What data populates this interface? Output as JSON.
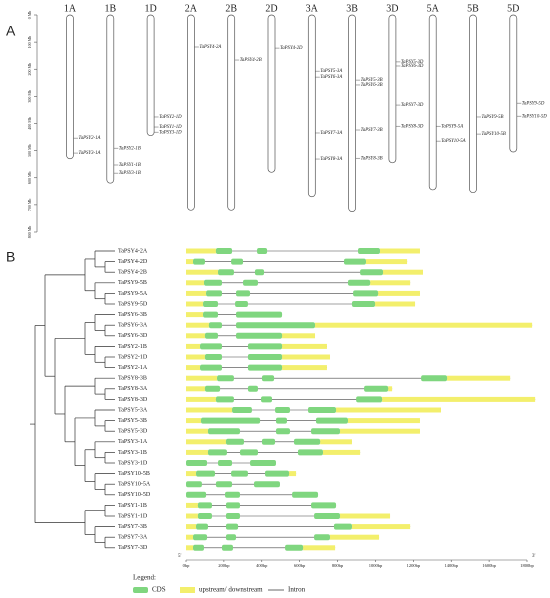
{
  "chart_data": [
    {
      "type": "ideogram",
      "label": "A",
      "ylim": [
        0,
        800
      ],
      "yticks": [
        {
          "value": 0,
          "label": "0 Mb"
        },
        {
          "value": 100,
          "label": "100 Mb"
        },
        {
          "value": 200,
          "label": "200 Mb"
        },
        {
          "value": 300,
          "label": "300 Mb"
        },
        {
          "value": 400,
          "label": "400 Mb"
        },
        {
          "value": 500,
          "label": "500 Mb"
        },
        {
          "value": 600,
          "label": "600 Mb"
        },
        {
          "value": 700,
          "label": "700 Mb"
        },
        {
          "value": 800,
          "label": "800 Mb"
        }
      ],
      "chromosomes": [
        {
          "name": "1A",
          "length": 530,
          "genes": [
            {
              "name": "TaPSY2-1A",
              "position": 454
            },
            {
              "name": "TaPSY3-1A",
              "position": 509
            }
          ]
        },
        {
          "name": "1B",
          "length": 620,
          "genes": [
            {
              "name": "TaPSY2-1B",
              "position": 491
            },
            {
              "name": "TaPSY1-1B",
              "position": 553
            },
            {
              "name": "TaPSY3-1B",
              "position": 583
            }
          ]
        },
        {
          "name": "1D",
          "length": 445,
          "genes": [
            {
              "name": "TaPSY2-1D",
              "position": 376
            },
            {
              "name": "TaPSY1-1D",
              "position": 413
            },
            {
              "name": "TaPSY3-1D",
              "position": 432
            }
          ]
        },
        {
          "name": "2A",
          "length": 720,
          "genes": [
            {
              "name": "TaPSY4-2A",
              "position": 118
            }
          ]
        },
        {
          "name": "2B",
          "length": 720,
          "genes": [
            {
              "name": "TaPSY4-2B",
              "position": 166
            }
          ]
        },
        {
          "name": "2D",
          "length": 580,
          "genes": [
            {
              "name": "TaPSY4-2D",
              "position": 122
            }
          ]
        },
        {
          "name": "3A",
          "length": 670,
          "genes": [
            {
              "name": "TaPSY5-3A",
              "position": 207
            },
            {
              "name": "TaPSY6-3A",
              "position": 229
            },
            {
              "name": "TaPSY7-3A",
              "position": 435
            },
            {
              "name": "TaPSY8-3A",
              "position": 531
            }
          ]
        },
        {
          "name": "3B",
          "length": 725,
          "genes": [
            {
              "name": "TaPSY5-3B",
              "position": 240
            },
            {
              "name": "TaPSY6-3B",
              "position": 258
            },
            {
              "name": "TaPSY7-3B",
              "position": 424
            },
            {
              "name": "TaPSY8-3B",
              "position": 528
            }
          ]
        },
        {
          "name": "3D",
          "length": 545,
          "genes": [
            {
              "name": "TaPSY5-3D",
              "position": 173
            },
            {
              "name": "TaPSY6-3D",
              "position": 188
            },
            {
              "name": "TaPSY7-3D",
              "position": 332
            },
            {
              "name": "TaPSY8-3D",
              "position": 410
            }
          ]
        },
        {
          "name": "5A",
          "length": 645,
          "genes": [
            {
              "name": "TaPSY9-5A",
              "position": 410
            },
            {
              "name": "TaPSY10-5A",
              "position": 465
            }
          ]
        },
        {
          "name": "5B",
          "length": 655,
          "genes": [
            {
              "name": "TaPSY9-5B",
              "position": 376
            },
            {
              "name": "TaPSY10-5B",
              "position": 439
            }
          ]
        },
        {
          "name": "5D",
          "length": 505,
          "genes": [
            {
              "name": "TaPSY9-5D",
              "position": 325
            },
            {
              "name": "TaPSY10-5D",
              "position": 373
            }
          ]
        }
      ]
    },
    {
      "type": "gene-structure",
      "label": "B",
      "xlim": [
        0,
        1800
      ],
      "xticks": [
        {
          "value": 0,
          "label": "0bp"
        },
        {
          "value": 200,
          "label": "200bp"
        },
        {
          "value": 400,
          "label": "400bp"
        },
        {
          "value": 600,
          "label": "600bp"
        },
        {
          "value": 800,
          "label": "800bp"
        },
        {
          "value": 1000,
          "label": "1000bp"
        },
        {
          "value": 1200,
          "label": "1200bp"
        },
        {
          "value": 1400,
          "label": "1400bp"
        },
        {
          "value": 1600,
          "label": "1600bp"
        },
        {
          "value": 1800,
          "label": "1800bp"
        }
      ],
      "five_prime": "5'",
      "three_prime": "3'",
      "legend": {
        "title": "Legend:",
        "cds": "CDS",
        "utr": "upstream/ downstream",
        "intron": "Intron"
      },
      "colors": {
        "cds": "#7fd67f",
        "utr": "#f3ef6c",
        "intron": "#444444"
      },
      "genes": [
        {
          "name": "TaPSY4-2A",
          "length": 1235,
          "utr": [
            [
              0,
              158
            ],
            [
              1024,
              1235
            ]
          ],
          "cds": [
            [
              158,
              243
            ],
            [
              375,
              428
            ],
            [
              908,
              1024
            ]
          ]
        },
        {
          "name": "TaPSY4-2D",
          "length": 1167,
          "utr": [
            [
              0,
              37
            ],
            [
              950,
              1167
            ]
          ],
          "cds": [
            [
              37,
              100
            ],
            [
              238,
              301
            ],
            [
              834,
              950
            ]
          ]
        },
        {
          "name": "TaPSY4-2B",
          "length": 1251,
          "utr": [
            [
              0,
              169
            ],
            [
              1040,
              1251
            ]
          ],
          "cds": [
            [
              169,
              253
            ],
            [
              364,
              412
            ],
            [
              919,
              1040
            ]
          ]
        },
        {
          "name": "TaPSY9-5B",
          "length": 1183,
          "utr": [
            [
              0,
              95
            ],
            [
              972,
              1183
            ]
          ],
          "cds": [
            [
              95,
              190
            ],
            [
              301,
              380
            ],
            [
              855,
              972
            ]
          ]
        },
        {
          "name": "TaPSY9-5A",
          "length": 1235,
          "utr": [
            [
              0,
              106
            ],
            [
              1014,
              1235
            ]
          ],
          "cds": [
            [
              106,
              190
            ],
            [
              264,
              338
            ],
            [
              882,
              1014
            ]
          ]
        },
        {
          "name": "TaPSY9-5D",
          "length": 1209,
          "utr": [
            [
              0,
              90
            ],
            [
              998,
              1209
            ]
          ],
          "cds": [
            [
              90,
              169
            ],
            [
              259,
              327
            ],
            [
              876,
              998
            ]
          ]
        },
        {
          "name": "TaPSY6-3B",
          "length": 507,
          "utr": [
            [
              0,
              90
            ]
          ],
          "cds": [
            [
              90,
              169
            ],
            [
              264,
              507
            ]
          ]
        },
        {
          "name": "TaPSY6-3A",
          "length": 1827,
          "utr": [
            [
              0,
              121
            ],
            [
              681,
              1827
            ]
          ],
          "cds": [
            [
              121,
              190
            ],
            [
              264,
              681
            ]
          ]
        },
        {
          "name": "TaPSY6-3D",
          "length": 681,
          "utr": [
            [
              0,
              100
            ],
            [
              507,
              681
            ]
          ],
          "cds": [
            [
              100,
              169
            ],
            [
              264,
              507
            ]
          ]
        },
        {
          "name": "TaPSY2-1B",
          "length": 744,
          "utr": [
            [
              0,
              74
            ],
            [
              507,
              744
            ]
          ],
          "cds": [
            [
              74,
              190
            ],
            [
              327,
              507
            ]
          ]
        },
        {
          "name": "TaPSY2-1D",
          "length": 760,
          "utr": [
            [
              0,
              100
            ],
            [
              507,
              760
            ]
          ],
          "cds": [
            [
              100,
              190
            ],
            [
              327,
              507
            ]
          ]
        },
        {
          "name": "TaPSY2-1A",
          "length": 744,
          "utr": [
            [
              0,
              74
            ],
            [
              507,
              744
            ]
          ],
          "cds": [
            [
              74,
              190
            ],
            [
              327,
              507
            ]
          ]
        },
        {
          "name": "TaPSY8-3B",
          "length": 1711,
          "utr": [
            [
              0,
              164
            ],
            [
              1378,
              1711
            ]
          ],
          "cds": [
            [
              164,
              253
            ],
            [
              401,
              465
            ],
            [
              1241,
              1378
            ]
          ]
        },
        {
          "name": "TaPSY8-3A",
          "length": 1088,
          "utr": [
            [
              0,
              100
            ],
            [
              1067,
              1088
            ]
          ],
          "cds": [
            [
              100,
              180
            ],
            [
              327,
              380
            ],
            [
              940,
              1067
            ]
          ]
        },
        {
          "name": "TaPSY8-3D",
          "length": 1843,
          "utr": [
            [
              0,
              158
            ],
            [
              1035,
              1843
            ]
          ],
          "cds": [
            [
              158,
              253
            ],
            [
              396,
              454
            ],
            [
              898,
              1035
            ]
          ]
        },
        {
          "name": "TaPSY5-3A",
          "length": 1346,
          "utr": [
            [
              0,
              243
            ],
            [
              792,
              1346
            ]
          ],
          "cds": [
            [
              243,
              348
            ],
            [
              470,
              549
            ],
            [
              644,
              792
            ]
          ]
        },
        {
          "name": "TaPSY5-3B",
          "length": 1235,
          "utr": [
            [
              0,
              79
            ],
            [
              855,
              1235
            ]
          ],
          "cds": [
            [
              79,
              391
            ],
            [
              475,
              533
            ],
            [
              686,
              855
            ]
          ]
        },
        {
          "name": "TaPSY5-3D",
          "length": 1235,
          "utr": [
            [
              0,
              116
            ],
            [
              813,
              1235
            ]
          ],
          "cds": [
            [
              116,
              285
            ],
            [
              475,
              549
            ],
            [
              660,
              813
            ]
          ]
        },
        {
          "name": "TaPSY3-1A",
          "length": 876,
          "utr": [
            [
              0,
              211
            ],
            [
              708,
              876
            ]
          ],
          "cds": [
            [
              211,
              306
            ],
            [
              401,
              470
            ],
            [
              570,
              708
            ]
          ]
        },
        {
          "name": "TaPSY3-1B",
          "length": 919,
          "utr": [
            [
              0,
              116
            ],
            [
              723,
              919
            ]
          ],
          "cds": [
            [
              116,
              216
            ],
            [
              285,
              380
            ],
            [
              591,
              723
            ]
          ]
        },
        {
          "name": "TaPSY3-1D",
          "length": 475,
          "utr": [],
          "cds": [
            [
              0,
              111
            ],
            [
              169,
              243
            ],
            [
              338,
              475
            ]
          ]
        },
        {
          "name": "TaPSY10-5B",
          "length": 581,
          "utr": [
            [
              0,
              53
            ],
            [
              544,
              581
            ]
          ],
          "cds": [
            [
              53,
              153
            ],
            [
              238,
              327
            ],
            [
              417,
              544
            ]
          ]
        },
        {
          "name": "TaPSY10-5A",
          "length": 496,
          "utr": [],
          "cds": [
            [
              0,
              84
            ],
            [
              158,
              243
            ],
            [
              359,
              496
            ]
          ]
        },
        {
          "name": "TaPSY10-5D",
          "length": 697,
          "utr": [],
          "cds": [
            [
              0,
              106
            ],
            [
              206,
              285
            ],
            [
              560,
              697
            ]
          ]
        },
        {
          "name": "TaPSY1-1B",
          "length": 792,
          "utr": [
            [
              0,
              63
            ]
          ],
          "cds": [
            [
              63,
              137
            ],
            [
              211,
              285
            ],
            [
              660,
              792
            ]
          ]
        },
        {
          "name": "TaPSY1-1D",
          "length": 1077,
          "utr": [
            [
              0,
              63
            ],
            [
              813,
              1077
            ]
          ],
          "cds": [
            [
              63,
              137
            ],
            [
              211,
              285
            ],
            [
              676,
              813
            ]
          ]
        },
        {
          "name": "TaPSY7-3B",
          "length": 1183,
          "utr": [
            [
              0,
              53
            ],
            [
              876,
              1183
            ]
          ],
          "cds": [
            [
              53,
              116
            ],
            [
              211,
              275
            ],
            [
              781,
              876
            ]
          ]
        },
        {
          "name": "TaPSY7-3A",
          "length": 1019,
          "utr": [
            [
              0,
              37
            ],
            [
              760,
              1019
            ]
          ],
          "cds": [
            [
              37,
              111
            ],
            [
              211,
              264
            ],
            [
              676,
              760
            ]
          ]
        },
        {
          "name": "TaPSY7-3D",
          "length": 787,
          "utr": [
            [
              0,
              37
            ],
            [
              618,
              787
            ]
          ],
          "cds": [
            [
              37,
              95
            ],
            [
              190,
              248
            ],
            [
              523,
              618
            ]
          ]
        }
      ]
    }
  ]
}
